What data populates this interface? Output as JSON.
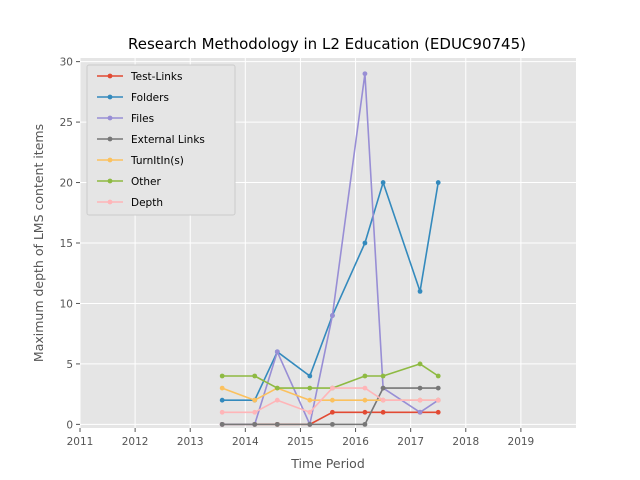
{
  "chart_data": {
    "type": "line",
    "title": "Research Methodology in L2 Education (EDUC90745)",
    "xlabel": "Time Period",
    "ylabel": "Maximum depth of LMS content items",
    "xlim": [
      2011,
      2020
    ],
    "ylim": [
      -0.3,
      30.3
    ],
    "x_ticks": [
      2011,
      2012,
      2013,
      2014,
      2015,
      2016,
      2017,
      2018,
      2019
    ],
    "y_ticks": [
      0,
      5,
      10,
      15,
      20,
      25,
      30
    ],
    "grid": true,
    "legend_position": "top-left",
    "x": [
      2013.58,
      2014.17,
      2014.58,
      2015.17,
      2015.58,
      2016.17,
      2016.5,
      2017.17,
      2017.5
    ],
    "series": [
      {
        "name": "Test-Links",
        "color": "#E24A33",
        "values": [
          0,
          0,
          0,
          0,
          1,
          1,
          1,
          1,
          1
        ]
      },
      {
        "name": "Folders",
        "color": "#348ABD",
        "values": [
          2,
          2,
          6,
          4,
          9,
          15,
          20,
          11,
          20
        ]
      },
      {
        "name": "Files",
        "color": "#988ED5",
        "values": [
          0,
          0,
          6,
          0,
          9,
          29,
          3,
          1,
          2
        ]
      },
      {
        "name": "External Links",
        "color": "#777777",
        "values": [
          0,
          0,
          0,
          0,
          0,
          0,
          3,
          3,
          3
        ]
      },
      {
        "name": "TurnItIn(s)",
        "color": "#FBC15E",
        "values": [
          3,
          2,
          3,
          2,
          2,
          2,
          2,
          2,
          2
        ]
      },
      {
        "name": "Other",
        "color": "#8EBA42",
        "values": [
          4,
          4,
          3,
          3,
          3,
          4,
          4,
          5,
          4
        ]
      },
      {
        "name": "Depth",
        "color": "#FFB5B8",
        "values": [
          1,
          1,
          2,
          1,
          3,
          3,
          2,
          2,
          2
        ]
      }
    ]
  }
}
